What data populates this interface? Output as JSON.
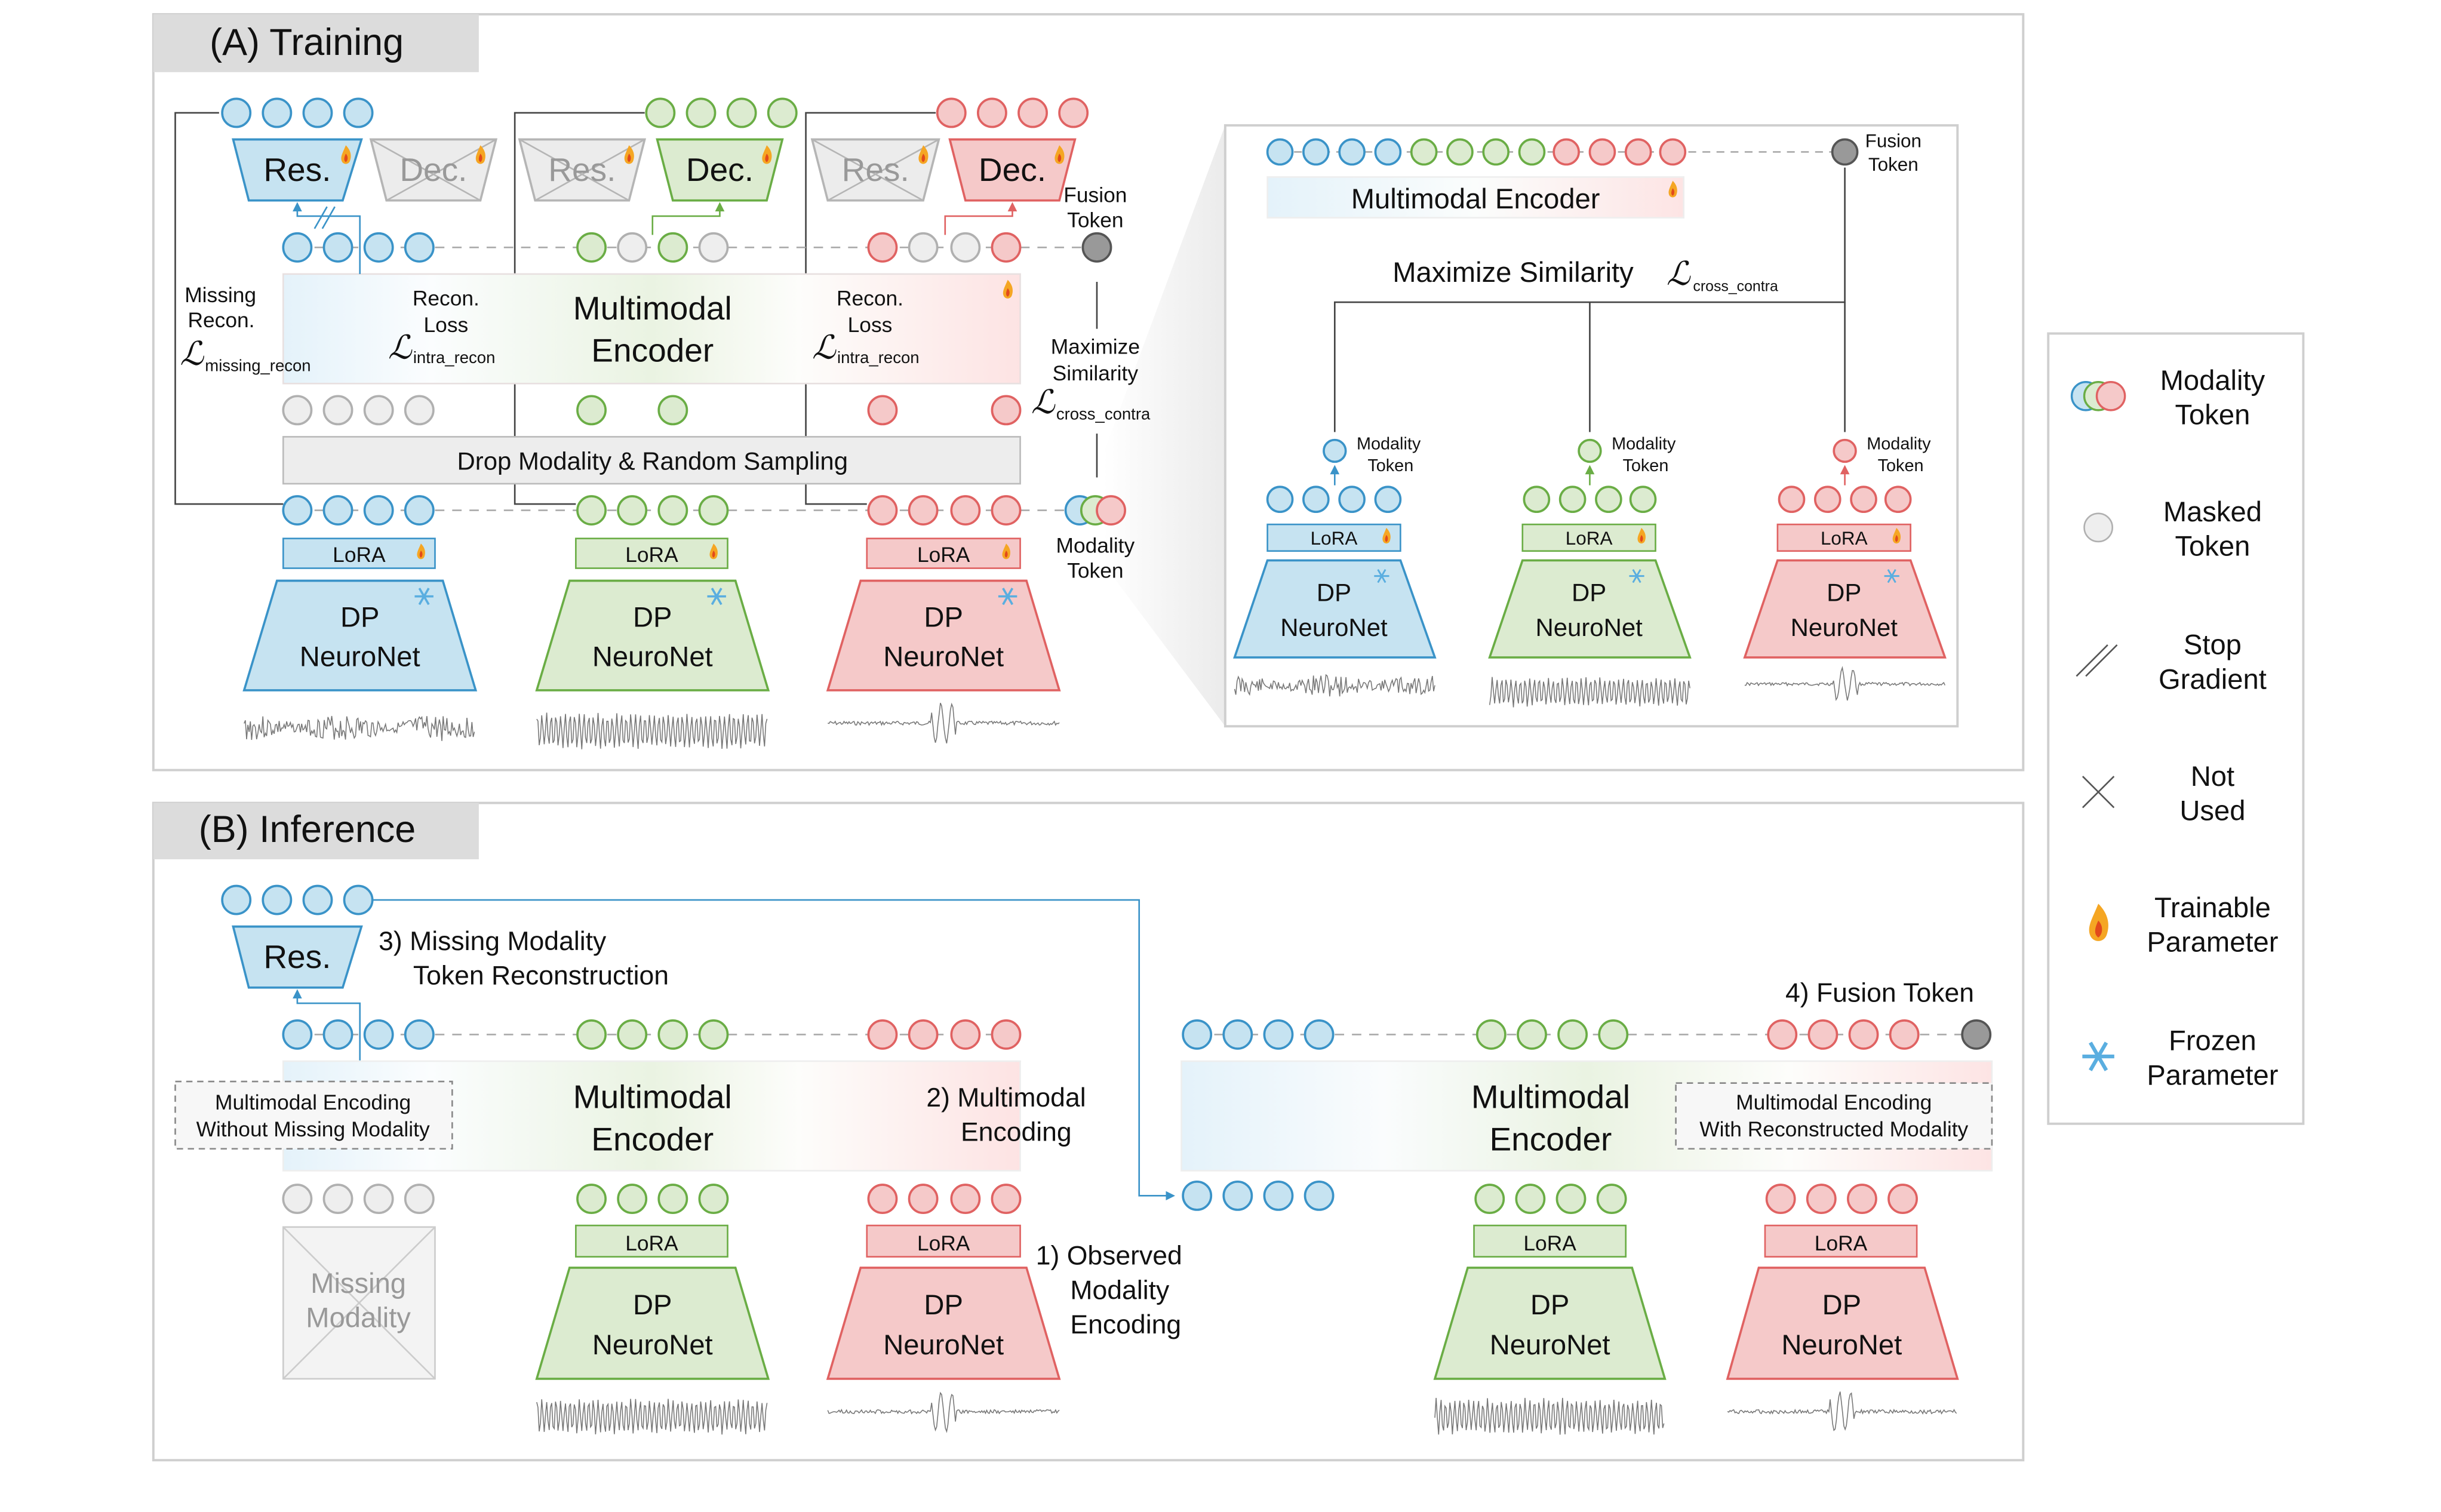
{
  "colors": {
    "blue_fill": "#c6e3f1",
    "blue_stroke": "#3a93c8",
    "green_fill": "#dcebd0",
    "green_stroke": "#6aad45",
    "red_fill": "#f5c9c9",
    "red_stroke": "#e06262",
    "masked_fill": "#eeeeee",
    "masked_stroke": "#b0b0b0",
    "fusion_fill": "#999999",
    "fusion_stroke": "#555555",
    "flame": "#f5a623",
    "snow": "#5aaee0"
  },
  "training": {
    "title": "(A) Training",
    "res": "Res.",
    "dec": "Dec.",
    "fusion_token": [
      "Fusion",
      "Token"
    ],
    "missing_recon": [
      "Missing",
      "Recon."
    ],
    "missing_recon_sub": "missing_recon",
    "recon_loss": [
      "Recon.",
      "Loss"
    ],
    "intra_sub": "intra_recon",
    "encoder": [
      "Multimodal",
      "Encoder"
    ],
    "maximize": [
      "Maximize",
      "Similarity"
    ],
    "cross_sub": "cross_contra",
    "drop": "Drop Modality & Random Sampling",
    "lora": "LoRA",
    "dp": [
      "DP",
      "NeuroNet"
    ],
    "modality_token": [
      "Modality",
      "Token"
    ],
    "inset": {
      "encoder": "Multimodal Encoder",
      "fusion_token": [
        "Fusion",
        "Token"
      ],
      "maximize": "Maximize Similarity",
      "modality_token": [
        "Modality",
        "Token"
      ]
    },
    "L": "ℒ"
  },
  "inference": {
    "title": "(B) Inference",
    "res": "Res.",
    "step3": [
      "3) Missing Modality",
      "Token Reconstruction"
    ],
    "step2": [
      "2) Multimodal",
      "Encoding"
    ],
    "step1": [
      "1) Observed",
      "Modality",
      "Encoding"
    ],
    "step4": "4) Fusion Token",
    "encoding_without": [
      "Multimodal Encoding",
      "Without Missing Modality"
    ],
    "encoding_with": [
      "Multimodal Encoding",
      "With Reconstructed Modality"
    ],
    "encoder": [
      "Multimodal",
      "Encoder"
    ],
    "missing": [
      "Missing",
      "Modality"
    ],
    "lora": "LoRA",
    "dp": [
      "DP",
      "NeuroNet"
    ]
  },
  "legend": [
    {
      "icon": "modality-token-icon",
      "label": [
        "Modality",
        "Token"
      ]
    },
    {
      "icon": "masked-token-icon",
      "label": [
        "Masked",
        "Token"
      ]
    },
    {
      "icon": "stop-gradient-icon",
      "label": [
        "Stop",
        "Gradient"
      ]
    },
    {
      "icon": "not-used-icon",
      "label": [
        "Not",
        "Used"
      ]
    },
    {
      "icon": "flame-icon",
      "label": [
        "Trainable",
        "Parameter"
      ]
    },
    {
      "icon": "snowflake-icon",
      "label": [
        "Frozen",
        "Parameter"
      ]
    }
  ]
}
